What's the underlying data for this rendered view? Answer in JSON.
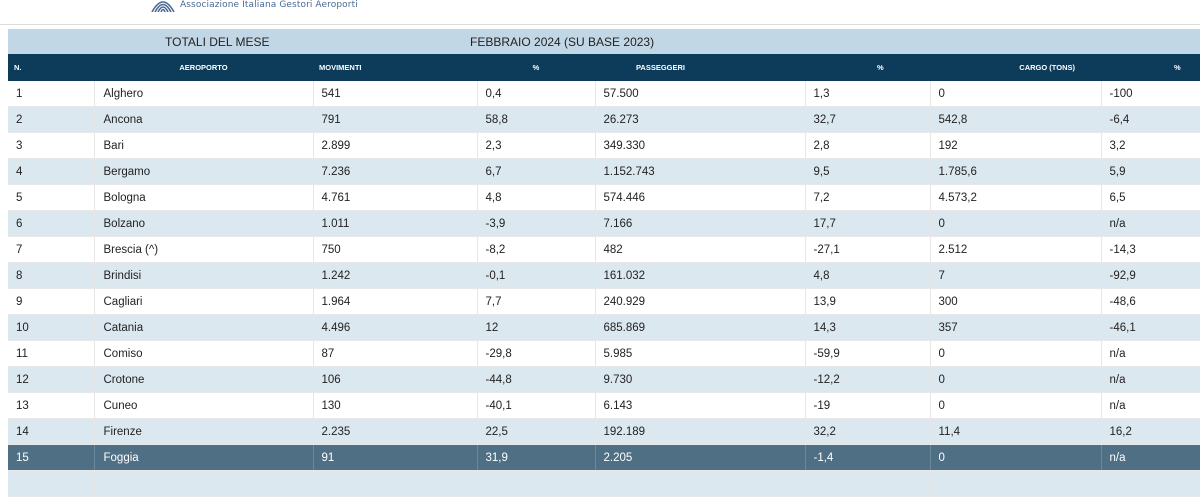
{
  "header": {
    "logo_text": "Associazione Italiana Gestori Aeroporti"
  },
  "title_row": {
    "left": "TOTALI DEL MESE",
    "center": "FEBBRAIO 2024 (SU BASE 2023)"
  },
  "columns": [
    "N.",
    "AEROPORTO",
    "MOVIMENTI",
    "%",
    "PASSEGGERI",
    "%",
    "CARGO (TONS)",
    "%"
  ],
  "rows": [
    [
      "1",
      "Alghero",
      "541",
      "0,4",
      "57.500",
      "1,3",
      "0",
      "-100"
    ],
    [
      "2",
      "Ancona",
      "791",
      "58,8",
      "26.273",
      "32,7",
      "542,8",
      "-6,4"
    ],
    [
      "3",
      "Bari",
      "2.899",
      "2,3",
      "349.330",
      "2,8",
      "192",
      "3,2"
    ],
    [
      "4",
      "Bergamo",
      "7.236",
      "6,7",
      "1.152.743",
      "9,5",
      "1.785,6",
      "5,9"
    ],
    [
      "5",
      "Bologna",
      "4.761",
      "4,8",
      "574.446",
      "7,2",
      "4.573,2",
      "6,5"
    ],
    [
      "6",
      "Bolzano",
      "1.011",
      "-3,9",
      "7.166",
      "17,7",
      "0",
      "n/a"
    ],
    [
      "7",
      "Brescia (^)",
      "750",
      "-8,2",
      "482",
      "-27,1",
      "2.512",
      "-14,3"
    ],
    [
      "8",
      "Brindisi",
      "1.242",
      "-0,1",
      "161.032",
      "4,8",
      "7",
      "-92,9"
    ],
    [
      "9",
      "Cagliari",
      "1.964",
      "7,7",
      "240.929",
      "13,9",
      "300",
      "-48,6"
    ],
    [
      "10",
      "Catania",
      "4.496",
      "12",
      "685.869",
      "14,3",
      "357",
      "-46,1"
    ],
    [
      "11",
      "Comiso",
      "87",
      "-29,8",
      "5.985",
      "-59,9",
      "0",
      "n/a"
    ],
    [
      "12",
      "Crotone",
      "106",
      "-44,8",
      "9.730",
      "-12,2",
      "0",
      "n/a"
    ],
    [
      "13",
      "Cuneo",
      "130",
      "-40,1",
      "6.143",
      "-19",
      "0",
      "n/a"
    ],
    [
      "14",
      "Firenze",
      "2.235",
      "22,5",
      "192.189",
      "32,2",
      "11,4",
      "16,2"
    ],
    [
      "15",
      "Foggia",
      "91",
      "31,9",
      "2.205",
      "-1,4",
      "0",
      "n/a"
    ],
    [
      "",
      "",
      "",
      "",
      "",
      "",
      "",
      ""
    ]
  ],
  "selected_row": 14,
  "colors": {
    "header_bg": "#0d3c5b",
    "title_bg": "#c2d7e6",
    "alt_row": "#dce8f0",
    "selected_row": "#4f6f85",
    "logo": "#4a6a96"
  }
}
